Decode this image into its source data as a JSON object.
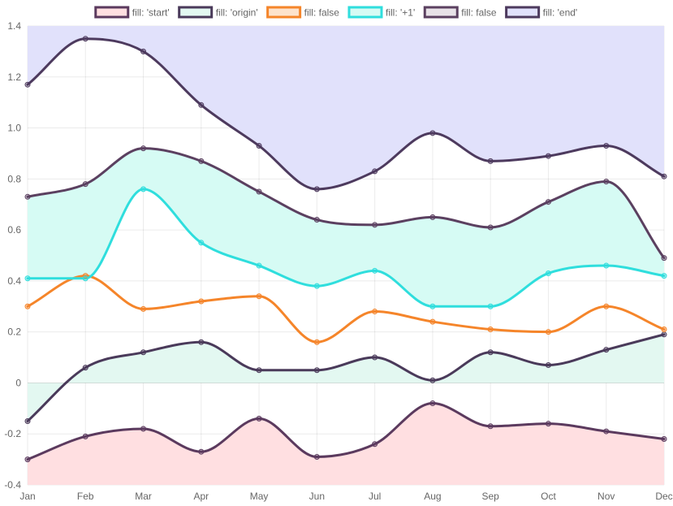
{
  "chart_data": {
    "type": "line",
    "categories": [
      "Jan",
      "Feb",
      "Mar",
      "Apr",
      "May",
      "Jun",
      "Jul",
      "Aug",
      "Sep",
      "Oct",
      "Nov",
      "Dec"
    ],
    "ylim": [
      -0.4,
      1.4
    ],
    "y_ticks": [
      -0.4,
      -0.2,
      0,
      0.2,
      0.4,
      0.6,
      0.8,
      1.0,
      1.2,
      1.4
    ],
    "y_tick_labels": [
      "-0.4",
      "-0.2",
      "0",
      "0.2",
      "0.4",
      "0.6",
      "0.8",
      "1.0",
      "1.2",
      "1.4"
    ],
    "grid": true,
    "legend_position": "top",
    "series": [
      {
        "name": "fill: 'start'",
        "fill": "start",
        "line_color": "#5b3a5e",
        "fill_color": "#ffdfe1",
        "legend_border": "#5b3a5e",
        "values": [
          -0.3,
          -0.21,
          -0.18,
          -0.27,
          -0.14,
          -0.29,
          -0.24,
          -0.08,
          -0.17,
          -0.16,
          -0.19,
          -0.22
        ]
      },
      {
        "name": "fill: 'origin'",
        "fill": "origin",
        "line_color": "#4a3a5a",
        "fill_color": "#e3f8f1",
        "legend_border": "#4a3a5a",
        "values": [
          -0.15,
          0.06,
          0.12,
          0.16,
          0.05,
          0.05,
          0.1,
          0.01,
          0.12,
          0.07,
          0.13,
          0.19
        ]
      },
      {
        "name": "fill: false",
        "fill": false,
        "line_color": "#f5852a",
        "fill_color": "#fde3cc",
        "legend_border": "#f5852a",
        "values": [
          0.3,
          0.42,
          0.29,
          0.32,
          0.34,
          0.16,
          0.28,
          0.24,
          0.21,
          0.2,
          0.3,
          0.21
        ]
      },
      {
        "name": "fill: '+1'",
        "fill": "+1",
        "line_color": "#2fdedd",
        "fill_color": "#d6fbf4",
        "legend_border": "#2fdedd",
        "values": [
          0.41,
          0.41,
          0.76,
          0.55,
          0.46,
          0.38,
          0.44,
          0.3,
          0.3,
          0.43,
          0.46,
          0.42
        ]
      },
      {
        "name": "fill: false",
        "fill": false,
        "line_color": "#5b4060",
        "fill_color": "#e8e2e8",
        "legend_border": "#5b4060",
        "values": [
          0.73,
          0.78,
          0.92,
          0.87,
          0.75,
          0.64,
          0.62,
          0.65,
          0.61,
          0.71,
          0.79,
          0.49
        ]
      },
      {
        "name": "fill: 'end'",
        "fill": "end",
        "line_color": "#4d3a5e",
        "fill_color": "#e1e1fb",
        "legend_border": "#4d3a5e",
        "values": [
          1.17,
          1.35,
          1.3,
          1.09,
          0.93,
          0.76,
          0.83,
          0.98,
          0.87,
          0.89,
          0.93,
          0.81
        ]
      }
    ]
  }
}
